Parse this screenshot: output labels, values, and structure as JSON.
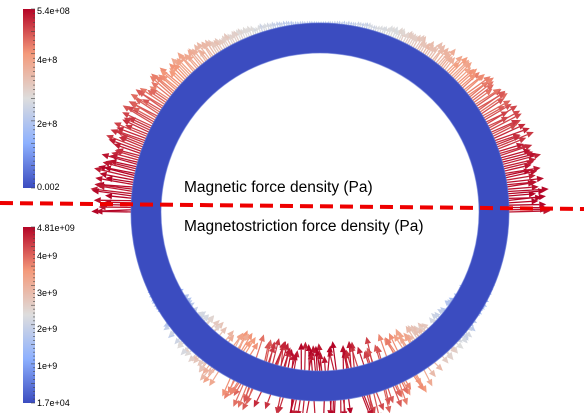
{
  "labels": {
    "upper": "Magnetic force density (Pa)",
    "lower": "Magnetostriction force density (Pa)"
  },
  "colorbars": [
    {
      "name": "magnetic",
      "ticks": [
        "5.4e+08",
        "4e+8",
        "2e+8",
        "0.002"
      ],
      "tick_values": [
        540000000,
        400000000,
        200000000,
        0.002
      ],
      "range": [
        0.002,
        540000000
      ]
    },
    {
      "name": "magnetostriction",
      "ticks": [
        "4.81e+09",
        "4e+9",
        "3e+9",
        "2e+9",
        "1e+9",
        "1.7e+04"
      ],
      "tick_values": [
        4810000000,
        4000000000,
        3000000000,
        2000000000,
        1000000000,
        17000
      ],
      "range": [
        17000,
        4810000000
      ]
    }
  ],
  "colors": {
    "ring": "#3b4cc0",
    "high": "#b40426",
    "mid": "#dddddd",
    "low": "#3b4cc0",
    "divider": "#ee0000"
  }
}
